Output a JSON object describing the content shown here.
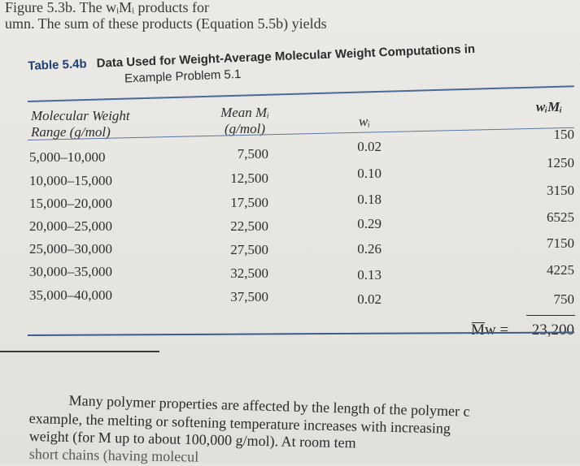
{
  "intro": {
    "line1": "Figure 5.3b. The wᵢMᵢ products for",
    "line2": "umn. The sum of these products (Equation 5.5b) yields"
  },
  "table": {
    "label": "Table 5.4b",
    "title": "Data Used for Weight-Average Molecular Weight Computations in",
    "subtitle": "Example Problem 5.1",
    "headers": {
      "col1_line1": "Molecular Weight",
      "col1_line2": "Range (g/mol)",
      "col2_line1": "Mean Mᵢ",
      "col2_line2": "(g/mol)",
      "col3": "wᵢ",
      "col4": "wᵢMᵢ"
    },
    "rows": [
      {
        "range": "5,000–10,000",
        "mean": "7,500",
        "w": "0.02",
        "wm": "150"
      },
      {
        "range": "10,000–15,000",
        "mean": "12,500",
        "w": "0.10",
        "wm": "1250"
      },
      {
        "range": "15,000–20,000",
        "mean": "17,500",
        "w": "0.18",
        "wm": "3150"
      },
      {
        "range": "20,000–25,000",
        "mean": "22,500",
        "w": "0.29",
        "wm": "6525"
      },
      {
        "range": "25,000–30,000",
        "mean": "27,500",
        "w": "0.26",
        "wm": "7150"
      },
      {
        "range": "30,000–35,000",
        "mean": "32,500",
        "w": "0.13",
        "wm": "4225"
      },
      {
        "range": "35,000–40,000",
        "mean": "37,500",
        "w": "0.02",
        "wm": "750"
      }
    ],
    "sum_label": "Mw =",
    "sum_value": "23,200"
  },
  "body": {
    "line1": "Many polymer properties are affected by the length of the polymer c",
    "line2": "example, the melting or softening temperature increases with increasing",
    "line3": "weight (for M up to about 100,000 g/mol). At room tem",
    "line4": "short chains (having molecul"
  }
}
